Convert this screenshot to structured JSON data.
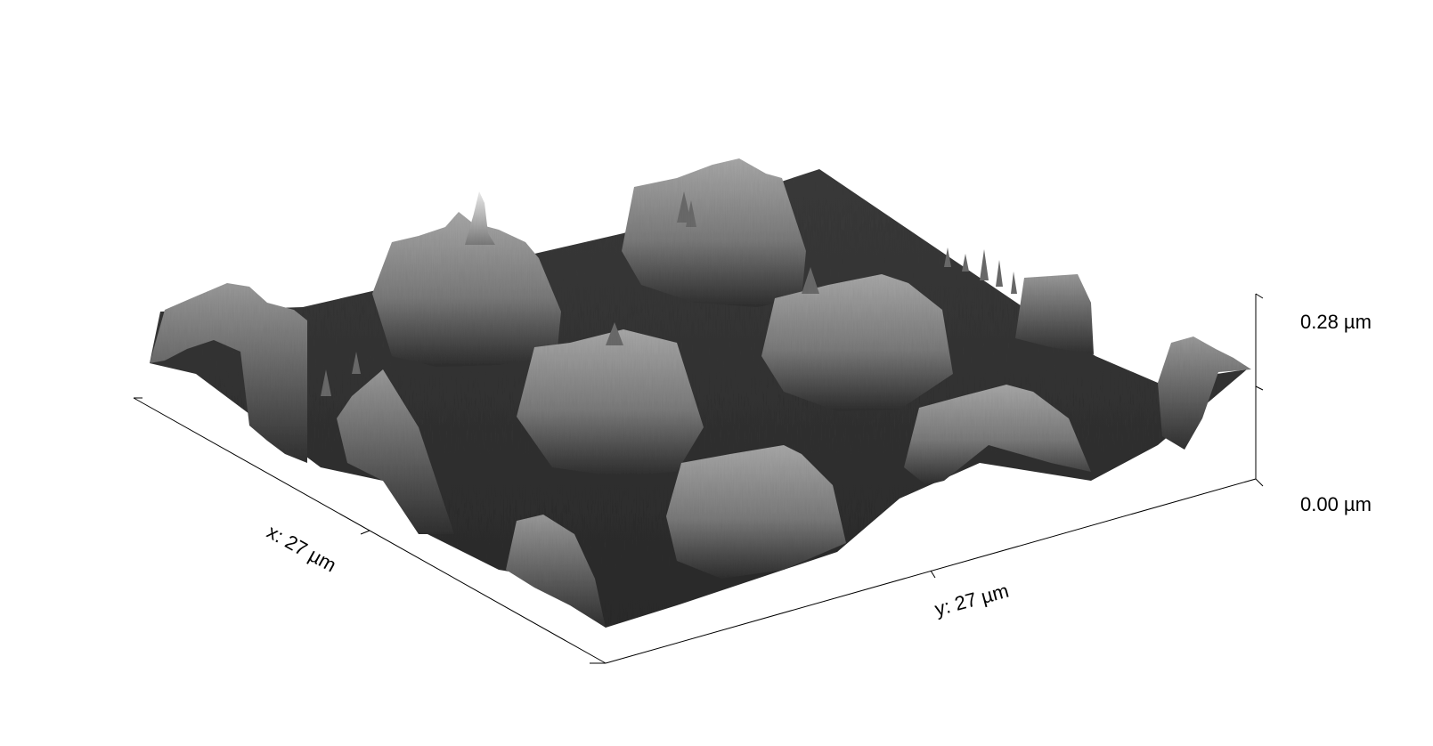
{
  "image": {
    "kind": "3D AFM surface topography rendering",
    "colors": {
      "background": "#ffffff",
      "axis": "#000000",
      "surface_low": "#2c2c2c",
      "surface_high": "#dcdcdc"
    }
  },
  "axes": {
    "x_label": "x: 27 µm",
    "y_label": "y: 27 µm",
    "z_max_label": "0.28 µm",
    "z_min_label": "0.00 µm"
  },
  "surface": {
    "scan_size_um": 27,
    "z_range_um": [
      0.0,
      0.28
    ],
    "features": [
      {
        "name": "left-edge-ridge"
      },
      {
        "name": "back-left-mesa"
      },
      {
        "name": "back-center-mesa"
      },
      {
        "name": "center-mesa"
      },
      {
        "name": "right-center-mesa"
      },
      {
        "name": "front-center-mesa"
      },
      {
        "name": "front-right-mesa"
      },
      {
        "name": "front-left-ridge"
      },
      {
        "name": "right-edge-ridge"
      }
    ]
  }
}
